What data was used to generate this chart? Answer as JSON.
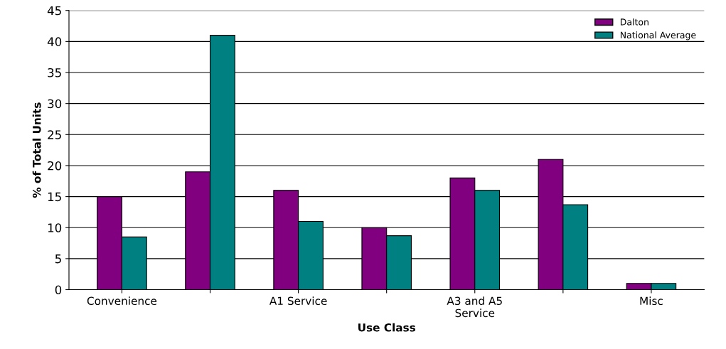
{
  "chart_data": {
    "type": "bar",
    "xlabel": "Use Class",
    "ylabel": "% of Total Units",
    "categories": [
      "Convenience",
      null,
      "A1 Service",
      null,
      "A3 and A5\nService",
      null,
      "Misc"
    ],
    "series": [
      {
        "name": "Dalton",
        "color": "#800080",
        "values": [
          15,
          19,
          16,
          10,
          18,
          21,
          1
        ]
      },
      {
        "name": "National Average",
        "color": "#008080",
        "values": [
          8.5,
          41,
          11,
          8.7,
          16,
          13.7,
          1
        ]
      }
    ],
    "ylim": [
      0,
      45
    ],
    "yticks": [
      0,
      5,
      10,
      15,
      20,
      25,
      30,
      35,
      40,
      45
    ],
    "grid": "y",
    "legend": "top right"
  }
}
